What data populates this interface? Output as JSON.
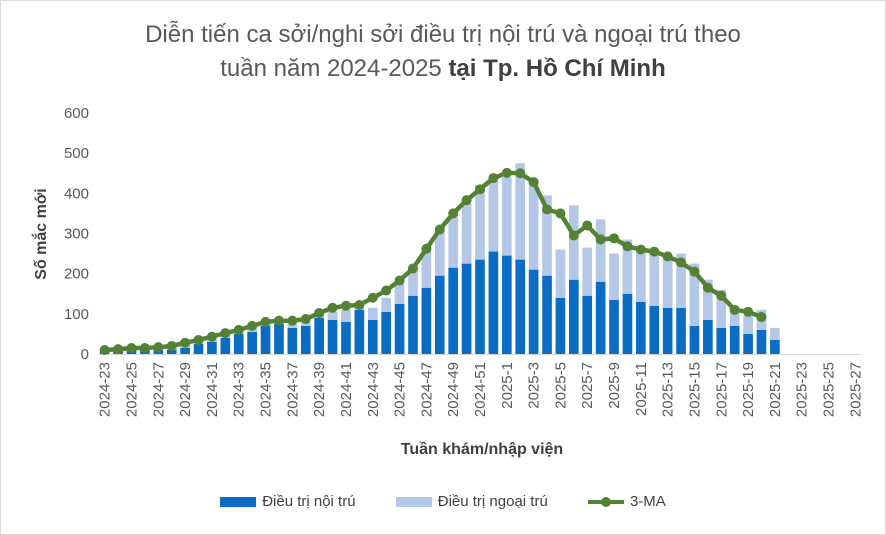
{
  "title_line1": "Diễn tiến ca sởi/nghi sởi điều trị nội trú và ngoại trú theo",
  "title_line2_normal": "tuần năm 2024-2025",
  "title_line2_bold": "tại Tp. Hồ Chí Minh",
  "colors": {
    "inpatient": "#0b6cc4",
    "outpatient": "#b4c7e7",
    "ma": "#548235",
    "axis": "#d9d9d9",
    "text": "#595959"
  },
  "chart_data": {
    "type": "bar",
    "stacked": true,
    "xlabel": "Tuần khám/nhập viện",
    "ylabel": "Số mắc mới",
    "ylim": [
      0,
      600
    ],
    "yticks": [
      0,
      100,
      200,
      300,
      400,
      500,
      600
    ],
    "grid": false,
    "legend_position": "bottom",
    "categories": [
      "2024-23",
      "2024-24",
      "2024-25",
      "2024-26",
      "2024-27",
      "2024-28",
      "2024-29",
      "2024-30",
      "2024-31",
      "2024-32",
      "2024-33",
      "2024-34",
      "2024-35",
      "2024-36",
      "2024-37",
      "2024-38",
      "2024-39",
      "2024-40",
      "2024-41",
      "2024-42",
      "2024-43",
      "2024-44",
      "2024-45",
      "2024-46",
      "2024-47",
      "2024-48",
      "2024-49",
      "2024-50",
      "2024-51",
      "2024-52",
      "2025-1",
      "2025-2",
      "2025-3",
      "2025-4",
      "2025-5",
      "2025-6",
      "2025-7",
      "2025-8",
      "2025-9",
      "2025-10",
      "2025-11",
      "2025-12",
      "2025-13",
      "2025-14",
      "2025-15",
      "2025-16",
      "2025-17",
      "2025-18",
      "2025-19",
      "2025-20",
      "2025-21",
      "2025-22",
      "2025-23",
      "2025-24",
      "2025-25",
      "2025-26",
      "2025-27"
    ],
    "tick_labels": [
      "2024-23",
      "2024-25",
      "2024-27",
      "2024-29",
      "2024-31",
      "2024-33",
      "2024-35",
      "2024-37",
      "2024-39",
      "2024-41",
      "2024-43",
      "2024-45",
      "2024-47",
      "2024-49",
      "2024-51",
      "2025-1",
      "2025-3",
      "2025-5",
      "2025-7",
      "2025-9",
      "2025-11",
      "2025-13",
      "2025-15",
      "2025-17",
      "2025-19",
      "2025-21",
      "2025-23",
      "2025-25",
      "2025-27"
    ],
    "series": [
      {
        "name": "Điều trị nội trú",
        "kind": "bar",
        "values": [
          10,
          10,
          12,
          10,
          10,
          10,
          15,
          25,
          30,
          40,
          50,
          55,
          70,
          75,
          65,
          70,
          90,
          85,
          80,
          110,
          85,
          105,
          125,
          145,
          165,
          195,
          215,
          225,
          235,
          255,
          245,
          235,
          210,
          195,
          140,
          185,
          145,
          180,
          135,
          150,
          130,
          120,
          115,
          115,
          70,
          85,
          65,
          70,
          50,
          60,
          35,
          0,
          0,
          0,
          0,
          0,
          0
        ]
      },
      {
        "name": "Điều trị ngoại trú",
        "kind": "bar",
        "values": [
          5,
          5,
          5,
          5,
          5,
          8,
          10,
          10,
          10,
          10,
          15,
          15,
          15,
          10,
          10,
          10,
          20,
          20,
          30,
          15,
          30,
          35,
          50,
          60,
          100,
          110,
          125,
          150,
          185,
          175,
          195,
          240,
          220,
          200,
          120,
          185,
          120,
          155,
          115,
          135,
          130,
          135,
          130,
          135,
          155,
          100,
          95,
          45,
          45,
          50,
          30,
          0,
          0,
          0,
          0,
          0,
          0
        ]
      },
      {
        "name": "3-MA",
        "kind": "line",
        "values": [
          10,
          12,
          15,
          15,
          17,
          20,
          28,
          35,
          43,
          52,
          60,
          70,
          80,
          83,
          83,
          87,
          102,
          115,
          120,
          122,
          140,
          158,
          183,
          213,
          262,
          310,
          350,
          383,
          410,
          438,
          451,
          450,
          428,
          360,
          350,
          295,
          320,
          285,
          288,
          268,
          260,
          255,
          243,
          228,
          205,
          165,
          145,
          110,
          105,
          92,
          null,
          null,
          null,
          null,
          null,
          null,
          null
        ]
      }
    ]
  }
}
